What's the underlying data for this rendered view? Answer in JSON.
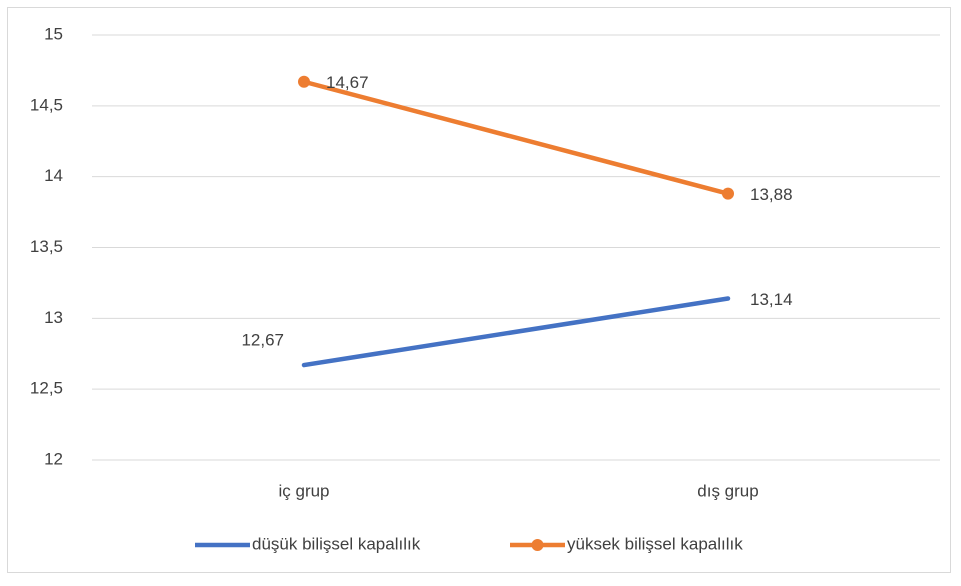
{
  "chart_data": {
    "type": "line",
    "categories": [
      "iç grup",
      "dış grup"
    ],
    "series": [
      {
        "name": "düşük bilişsel kapalılık",
        "color": "#4472c4",
        "values": [
          12.67,
          13.14
        ],
        "value_labels": [
          "12,67",
          "13,14"
        ],
        "markers": false
      },
      {
        "name": "yüksek bilişsel kapalılık",
        "color": "#ed7d31",
        "values": [
          14.67,
          13.88
        ],
        "value_labels": [
          "14,67",
          "13,88"
        ],
        "markers": true
      }
    ],
    "ylim": [
      12,
      15
    ],
    "yticks": [
      12,
      {
        "value": 12.5,
        "label": "12,5"
      },
      13,
      {
        "value": 13.5,
        "label": "13,5"
      },
      14,
      {
        "value": 14.5,
        "label": "14,5"
      },
      15
    ],
    "grid": true,
    "legend": "bottom"
  }
}
